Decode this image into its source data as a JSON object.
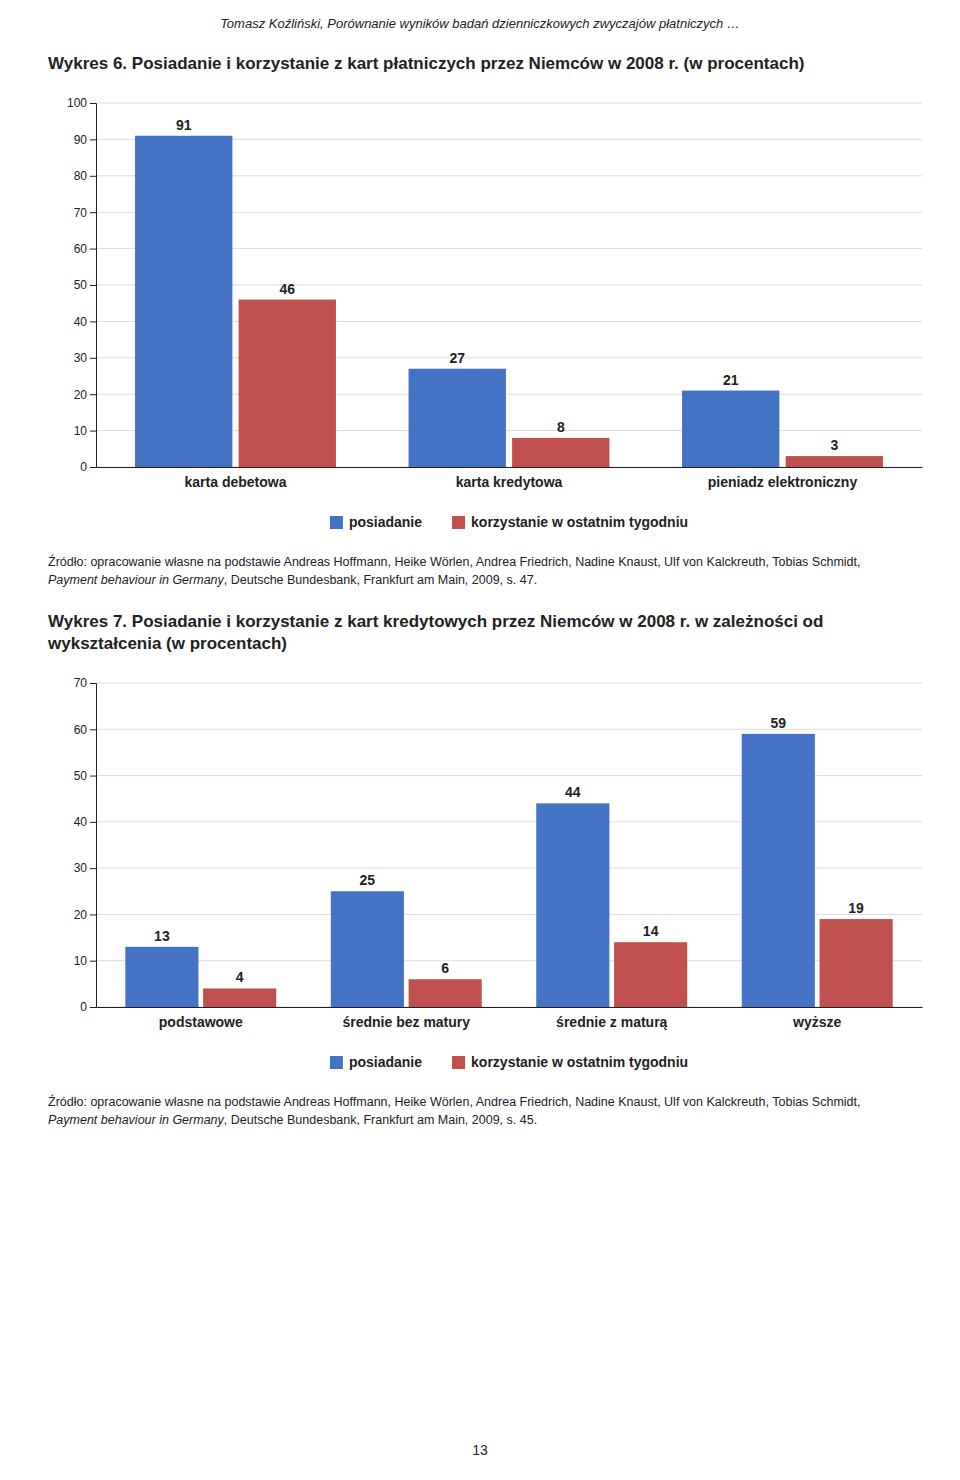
{
  "header": "Tomasz Koźliński, Porównanie wyników badań dzienniczkowych zwyczajów płatniczych …",
  "page_number": "13",
  "chart_data": [
    {
      "type": "bar",
      "title": "Wykres 6. Posiadanie i korzystanie z kart płatniczych przez Niemców w 2008 r. (w procentach)",
      "categories": [
        "karta debetowa",
        "karta kredytowa",
        "pieniadz elektroniczny"
      ],
      "series": [
        {
          "name": "posiadanie",
          "color": "#4472C4",
          "values": [
            91,
            27,
            21
          ]
        },
        {
          "name": "korzystanie w ostatnim tygodniu",
          "color": "#C0504D",
          "values": [
            46,
            8,
            3
          ]
        }
      ],
      "ylim": [
        0,
        100
      ],
      "yticks": [
        0,
        10,
        20,
        30,
        40,
        50,
        60,
        70,
        80,
        90,
        100
      ],
      "grid": true,
      "legend": "bottom",
      "data_labels": true,
      "annotations": [
        "Źródło: opracowanie własne na podstawie Andreas Hoffmann, Heike Wörlen, Andrea Friedrich, Nadine Knaust, Ulf von Kalckreuth, Tobias Schmidt, ",
        "Payment behaviour in Germany",
        ", Deutsche Bundesbank, Frankfurt am Main, 2009, s. 47."
      ]
    },
    {
      "type": "bar",
      "title": "Wykres 7. Posiadanie i korzystanie z kart kredytowych przez Niemców w 2008 r. w zależności od wykształcenia (w procentach)",
      "categories": [
        "podstawowe",
        "średnie bez matury",
        "średnie z maturą",
        "wyższe"
      ],
      "series": [
        {
          "name": "posiadanie",
          "color": "#4472C4",
          "values": [
            13,
            25,
            44,
            59
          ]
        },
        {
          "name": "korzystanie w ostatnim tygodniu",
          "color": "#C0504D",
          "values": [
            4,
            6,
            14,
            19
          ]
        }
      ],
      "ylim": [
        0,
        70
      ],
      "yticks": [
        0,
        10,
        20,
        30,
        40,
        50,
        60,
        70
      ],
      "grid": true,
      "legend": "bottom",
      "data_labels": true,
      "annotations": [
        "Źródło: opracowanie własne na podstawie Andreas Hoffmann, Heike Wörlen, Andrea Friedrich, Nadine Knaust, Ulf von Kalckreuth, Tobias Schmidt, ",
        "Payment behaviour in Germany",
        ", Deutsche Bundesbank, Frankfurt am Main, 2009, s. 45."
      ]
    }
  ]
}
